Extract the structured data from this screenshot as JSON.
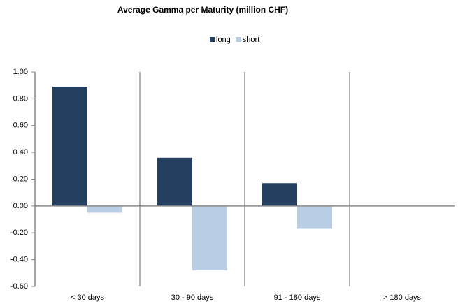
{
  "chart_data": {
    "type": "bar",
    "title": "Average Gamma per Maturity (million CHF)",
    "categories": [
      "< 30 days",
      "30 - 90 days",
      "91 - 180 days",
      "> 180 days"
    ],
    "series": [
      {
        "name": "long",
        "color": "#243f60",
        "values": [
          0.89,
          0.36,
          0.17,
          0
        ]
      },
      {
        "name": "short",
        "color": "#b9cde5",
        "values": [
          -0.05,
          -0.48,
          -0.17,
          0
        ]
      }
    ],
    "ylim": [
      -0.6,
      1.0
    ],
    "yticks": [
      {
        "value": 1.0,
        "label": "1.00"
      },
      {
        "value": 0.8,
        "label": "0.80"
      },
      {
        "value": 0.6,
        "label": "0.60"
      },
      {
        "value": 0.4,
        "label": "0.40"
      },
      {
        "value": 0.2,
        "label": "0.20"
      },
      {
        "value": 0,
        "label": "0.00"
      },
      {
        "value": -0.2,
        "label": "-0.20"
      },
      {
        "value": -0.4,
        "label": "-0.40"
      },
      {
        "value": -0.6,
        "label": "-0.60"
      }
    ],
    "legend": "top"
  }
}
